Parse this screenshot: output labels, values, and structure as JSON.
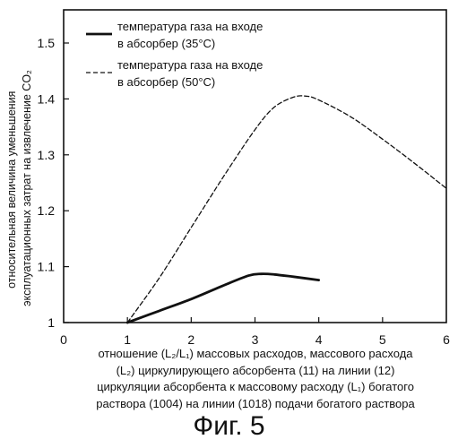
{
  "chart_data": {
    "type": "line",
    "xlim": [
      0,
      6
    ],
    "ylim": [
      1.0,
      1.58
    ],
    "x_ticks": [
      "0",
      "1",
      "2",
      "3",
      "4",
      "5",
      "6"
    ],
    "y_ticks": [
      "1",
      "1.1",
      "1.2",
      "1.3",
      "1.4",
      "1.5"
    ],
    "ylabel_lines": [
      "относительная величина уменьшения",
      "эксплуатационных затрат на извлечение CO₂"
    ],
    "xlabel_lines": [
      "отношение (L₂/L₁) массовых расходов, массового расхода",
      "(L₂) циркулирующего абсорбента (11) на линии (12)",
      "циркуляции абсорбента к массовому расходу (L₁) богатого",
      "раствора (1004) на линии (1018) подачи богатого раствора"
    ],
    "legend_position": "top-left",
    "grid": false,
    "series": [
      {
        "name_lines": [
          "температура газа на входе",
          "в абсорбер (35°С)"
        ],
        "style": "solid",
        "color": "#111111",
        "x": [
          1.0,
          1.5,
          2.0,
          2.5,
          2.9,
          3.1,
          3.3,
          3.6,
          4.0
        ],
        "y": [
          1.0,
          1.021,
          1.042,
          1.066,
          1.084,
          1.087,
          1.086,
          1.082,
          1.076
        ]
      },
      {
        "name_lines": [
          "температура газа на входе",
          "в абсорбер (50°С)"
        ],
        "style": "dashed",
        "color": "#111111",
        "x": [
          1.0,
          1.5,
          2.0,
          2.5,
          3.0,
          3.3,
          3.6,
          3.8,
          4.0,
          4.5,
          5.0,
          5.5,
          6.0
        ],
        "y": [
          1.0,
          1.08,
          1.17,
          1.26,
          1.345,
          1.385,
          1.403,
          1.405,
          1.398,
          1.368,
          1.328,
          1.285,
          1.24
        ]
      }
    ]
  },
  "figure_caption": "Фиг. 5"
}
